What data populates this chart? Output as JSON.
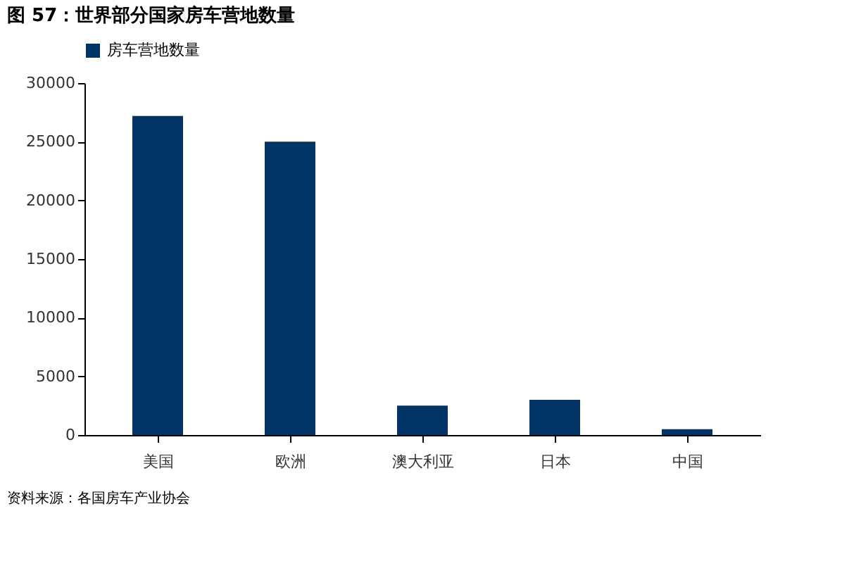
{
  "chart_data": {
    "type": "bar",
    "title": "图 57：世界部分国家房车营地数量",
    "categories": [
      "美国",
      "欧洲",
      "澳大利亚",
      "日本",
      "中国"
    ],
    "series": [
      {
        "name": "房车营地数量",
        "color": "#003366",
        "values": [
          27200,
          25000,
          2500,
          3000,
          500
        ]
      }
    ],
    "ylim": [
      0,
      30000
    ],
    "yticks": [
      0,
      5000,
      10000,
      15000,
      20000,
      25000,
      30000
    ],
    "grid": false,
    "legend": "top",
    "annotations": [
      "资料来源：各国房车产业协会"
    ]
  }
}
